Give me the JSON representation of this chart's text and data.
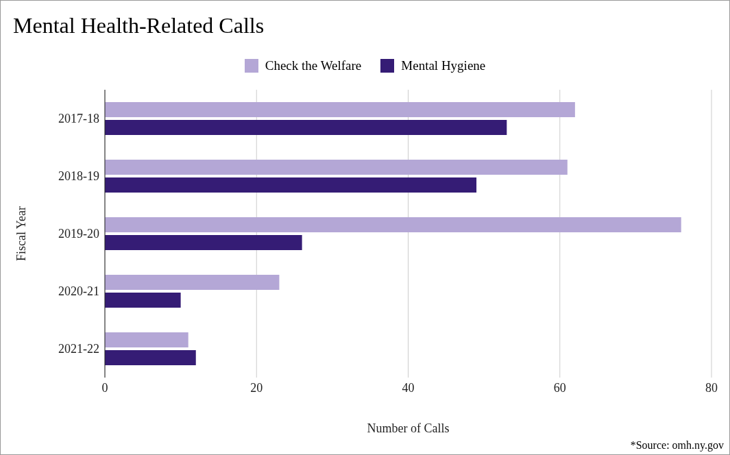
{
  "chart_data": {
    "type": "bar",
    "orientation": "horizontal",
    "title": "Mental Health-Related Calls",
    "xlabel": "Number of Calls",
    "ylabel": "Fiscal Year",
    "categories": [
      "2017-18",
      "2018-19",
      "2019-20",
      "2020-21",
      "2021-22"
    ],
    "series": [
      {
        "name": "Check the Welfare",
        "color": "#b4a7d6",
        "values": [
          62,
          61,
          76,
          23,
          11
        ]
      },
      {
        "name": "Mental Hygiene",
        "color": "#351c75",
        "values": [
          53,
          49,
          26,
          10,
          12
        ]
      }
    ],
    "xlim": [
      0,
      80
    ],
    "xticks": [
      0,
      20,
      40,
      60,
      80
    ],
    "grid": "x",
    "legend": "top",
    "annotations": [
      "*Source: omh.ny.gov"
    ]
  }
}
